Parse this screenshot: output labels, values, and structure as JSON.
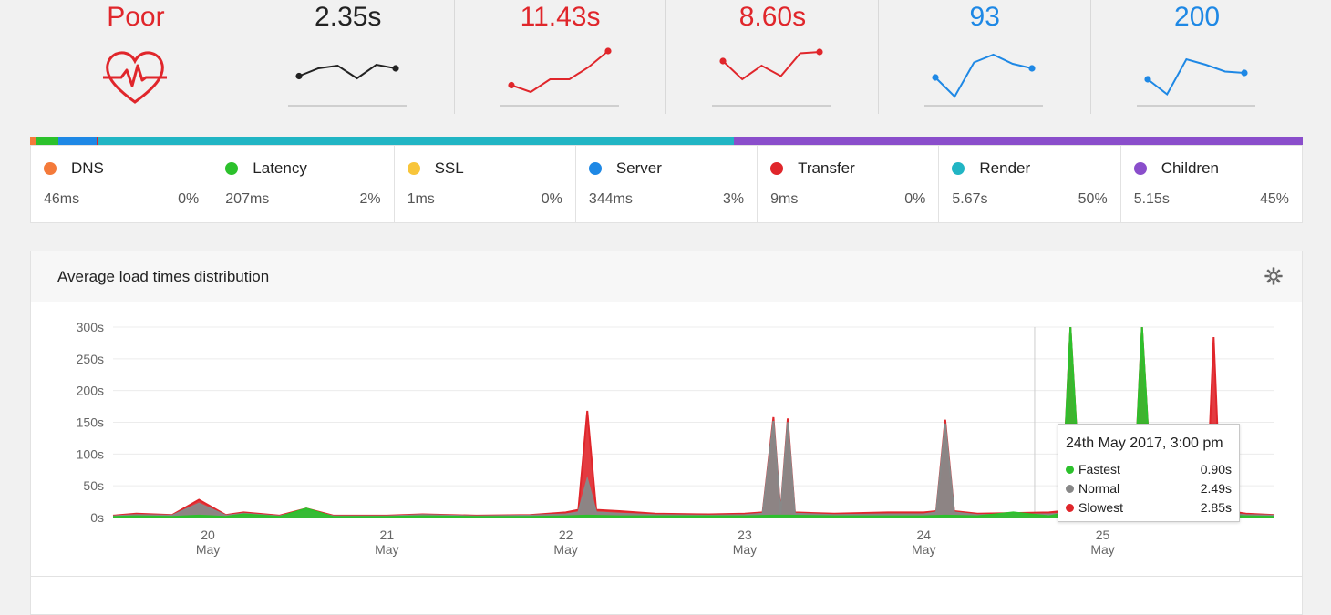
{
  "kpis": [
    {
      "value": "Poor",
      "color": "#e0262b",
      "icon": "heart-pulse-icon",
      "spark": null
    },
    {
      "value": "2.35s",
      "color": "#222222",
      "spark": [
        0.45,
        0.62,
        0.68,
        0.4,
        0.7,
        0.62
      ],
      "spark_color": "#222222"
    },
    {
      "value": "11.43s",
      "color": "#e0262b",
      "spark": [
        0.25,
        0.1,
        0.38,
        0.38,
        0.65,
        1.0
      ],
      "spark_color": "#e0262b"
    },
    {
      "value": "8.60s",
      "color": "#e0262b",
      "spark": [
        0.78,
        0.38,
        0.68,
        0.45,
        0.95,
        0.98
      ],
      "spark_color": "#e0262b"
    },
    {
      "value": "93",
      "color": "#1e88e5",
      "spark": [
        0.42,
        0.0,
        0.75,
        0.92,
        0.72,
        0.62
      ],
      "spark_color": "#1e88e5"
    },
    {
      "value": "200",
      "color": "#1e88e5",
      "spark": [
        0.38,
        0.05,
        0.82,
        0.7,
        0.55,
        0.52
      ],
      "spark_color": "#1e88e5"
    }
  ],
  "breakdown": [
    {
      "name": "DNS",
      "time": "46ms",
      "pct": "0%",
      "color": "#f47a3a",
      "share": 0.004
    },
    {
      "name": "Latency",
      "time": "207ms",
      "pct": "2%",
      "color": "#2cc12c",
      "share": 0.018
    },
    {
      "name": "SSL",
      "time": "1ms",
      "pct": "0%",
      "color": "#f8c53a",
      "share": 0.0
    },
    {
      "name": "Server",
      "time": "344ms",
      "pct": "3%",
      "color": "#1e88e5",
      "share": 0.03
    },
    {
      "name": "Transfer",
      "time": "9ms",
      "pct": "0%",
      "color": "#e0262b",
      "share": 0.001
    },
    {
      "name": "Render",
      "time": "5.67s",
      "pct": "50%",
      "color": "#21b5c4",
      "share": 0.5
    },
    {
      "name": "Children",
      "time": "5.15s",
      "pct": "45%",
      "color": "#8a4ecb",
      "share": 0.447
    }
  ],
  "panel": {
    "title": "Average load times distribution",
    "settings_icon": "gear-icon"
  },
  "chart_data": {
    "type": "area",
    "title": "Average load times distribution",
    "ylabel": "",
    "yticks": [
      "300s",
      "250s",
      "200s",
      "150s",
      "100s",
      "50s",
      "0s"
    ],
    "ylim": [
      0,
      300
    ],
    "xticks": [
      {
        "day": "20",
        "month": "May",
        "x": 20.0
      },
      {
        "day": "21",
        "month": "May",
        "x": 21.0
      },
      {
        "day": "22",
        "month": "May",
        "x": 22.0
      },
      {
        "day": "23",
        "month": "May",
        "x": 23.0
      },
      {
        "day": "24",
        "month": "May",
        "x": 24.0
      },
      {
        "day": "25",
        "month": "May",
        "x": 25.0
      }
    ],
    "xlim": [
      19.47,
      25.96
    ],
    "series": [
      {
        "name": "Slowest",
        "color": "#e0262b",
        "points": [
          [
            19.47,
            3
          ],
          [
            19.6,
            6
          ],
          [
            19.8,
            4
          ],
          [
            19.95,
            28
          ],
          [
            20.1,
            4
          ],
          [
            20.2,
            8
          ],
          [
            20.4,
            3
          ],
          [
            20.55,
            14
          ],
          [
            20.7,
            3
          ],
          [
            21.0,
            3
          ],
          [
            21.2,
            5
          ],
          [
            21.5,
            3
          ],
          [
            21.8,
            4
          ],
          [
            22.0,
            8
          ],
          [
            22.07,
            12
          ],
          [
            22.12,
            168
          ],
          [
            22.17,
            12
          ],
          [
            22.3,
            10
          ],
          [
            22.5,
            6
          ],
          [
            22.8,
            5
          ],
          [
            23.0,
            6
          ],
          [
            23.1,
            8
          ],
          [
            23.16,
            158
          ],
          [
            23.2,
            8
          ],
          [
            23.24,
            156
          ],
          [
            23.28,
            8
          ],
          [
            23.5,
            6
          ],
          [
            23.8,
            8
          ],
          [
            24.0,
            8
          ],
          [
            24.07,
            10
          ],
          [
            24.12,
            154
          ],
          [
            24.17,
            10
          ],
          [
            24.3,
            6
          ],
          [
            24.5,
            7
          ],
          [
            24.7,
            8
          ],
          [
            24.77,
            10
          ],
          [
            24.82,
            300
          ],
          [
            24.88,
            12
          ],
          [
            25.05,
            8
          ],
          [
            25.17,
            10
          ],
          [
            25.22,
            300
          ],
          [
            25.28,
            12
          ],
          [
            25.5,
            10
          ],
          [
            25.58,
            12
          ],
          [
            25.62,
            284
          ],
          [
            25.66,
            12
          ],
          [
            25.8,
            6
          ],
          [
            25.96,
            4
          ]
        ]
      },
      {
        "name": "Normal",
        "color": "#888888",
        "points": [
          [
            19.47,
            2
          ],
          [
            19.6,
            4
          ],
          [
            19.8,
            3
          ],
          [
            19.95,
            22
          ],
          [
            20.1,
            3
          ],
          [
            20.2,
            6
          ],
          [
            20.4,
            2
          ],
          [
            20.55,
            12
          ],
          [
            20.7,
            2
          ],
          [
            21.0,
            2
          ],
          [
            21.2,
            4
          ],
          [
            21.5,
            2
          ],
          [
            21.8,
            3
          ],
          [
            22.0,
            5
          ],
          [
            22.07,
            8
          ],
          [
            22.12,
            60
          ],
          [
            22.17,
            8
          ],
          [
            22.3,
            6
          ],
          [
            22.5,
            4
          ],
          [
            22.8,
            3
          ],
          [
            23.0,
            4
          ],
          [
            23.1,
            6
          ],
          [
            23.16,
            152
          ],
          [
            23.2,
            6
          ],
          [
            23.24,
            150
          ],
          [
            23.28,
            6
          ],
          [
            23.5,
            4
          ],
          [
            23.8,
            5
          ],
          [
            24.0,
            5
          ],
          [
            24.07,
            8
          ],
          [
            24.12,
            148
          ],
          [
            24.17,
            8
          ],
          [
            24.3,
            4
          ],
          [
            24.5,
            5
          ],
          [
            24.7,
            5
          ],
          [
            24.77,
            6
          ],
          [
            24.82,
            40
          ],
          [
            24.88,
            8
          ],
          [
            25.05,
            5
          ],
          [
            25.17,
            6
          ],
          [
            25.22,
            40
          ],
          [
            25.28,
            8
          ],
          [
            25.5,
            6
          ],
          [
            25.58,
            8
          ],
          [
            25.62,
            30
          ],
          [
            25.66,
            8
          ],
          [
            25.8,
            4
          ],
          [
            25.96,
            3
          ]
        ]
      },
      {
        "name": "Fastest",
        "color": "#2cc12c",
        "points": [
          [
            19.47,
            1
          ],
          [
            19.6,
            2
          ],
          [
            19.8,
            1
          ],
          [
            19.95,
            3
          ],
          [
            20.1,
            1
          ],
          [
            20.2,
            5
          ],
          [
            20.4,
            1
          ],
          [
            20.55,
            14
          ],
          [
            20.7,
            1
          ],
          [
            21.0,
            1
          ],
          [
            21.2,
            2
          ],
          [
            21.5,
            1
          ],
          [
            21.8,
            1
          ],
          [
            22.0,
            2
          ],
          [
            22.12,
            3
          ],
          [
            22.3,
            2
          ],
          [
            22.5,
            2
          ],
          [
            22.8,
            2
          ],
          [
            23.0,
            2
          ],
          [
            23.16,
            3
          ],
          [
            23.24,
            3
          ],
          [
            23.5,
            2
          ],
          [
            23.8,
            2
          ],
          [
            24.0,
            2
          ],
          [
            24.12,
            3
          ],
          [
            24.3,
            2
          ],
          [
            24.5,
            8
          ],
          [
            24.7,
            2
          ],
          [
            24.77,
            6
          ],
          [
            24.82,
            300
          ],
          [
            24.88,
            8
          ],
          [
            25.05,
            4
          ],
          [
            25.17,
            6
          ],
          [
            25.22,
            300
          ],
          [
            25.28,
            8
          ],
          [
            25.5,
            4
          ],
          [
            25.62,
            3
          ],
          [
            25.8,
            2
          ],
          [
            25.96,
            1
          ]
        ]
      }
    ],
    "crosshair_x": 24.62,
    "tooltip": {
      "title": "24th May 2017, 3:00 pm",
      "rows": [
        {
          "name": "Fastest",
          "value": "0.90s",
          "color": "#2cc12c"
        },
        {
          "name": "Normal",
          "value": "2.49s",
          "color": "#888888"
        },
        {
          "name": "Slowest",
          "value": "2.85s",
          "color": "#e0262b"
        }
      ]
    },
    "grid": true
  }
}
